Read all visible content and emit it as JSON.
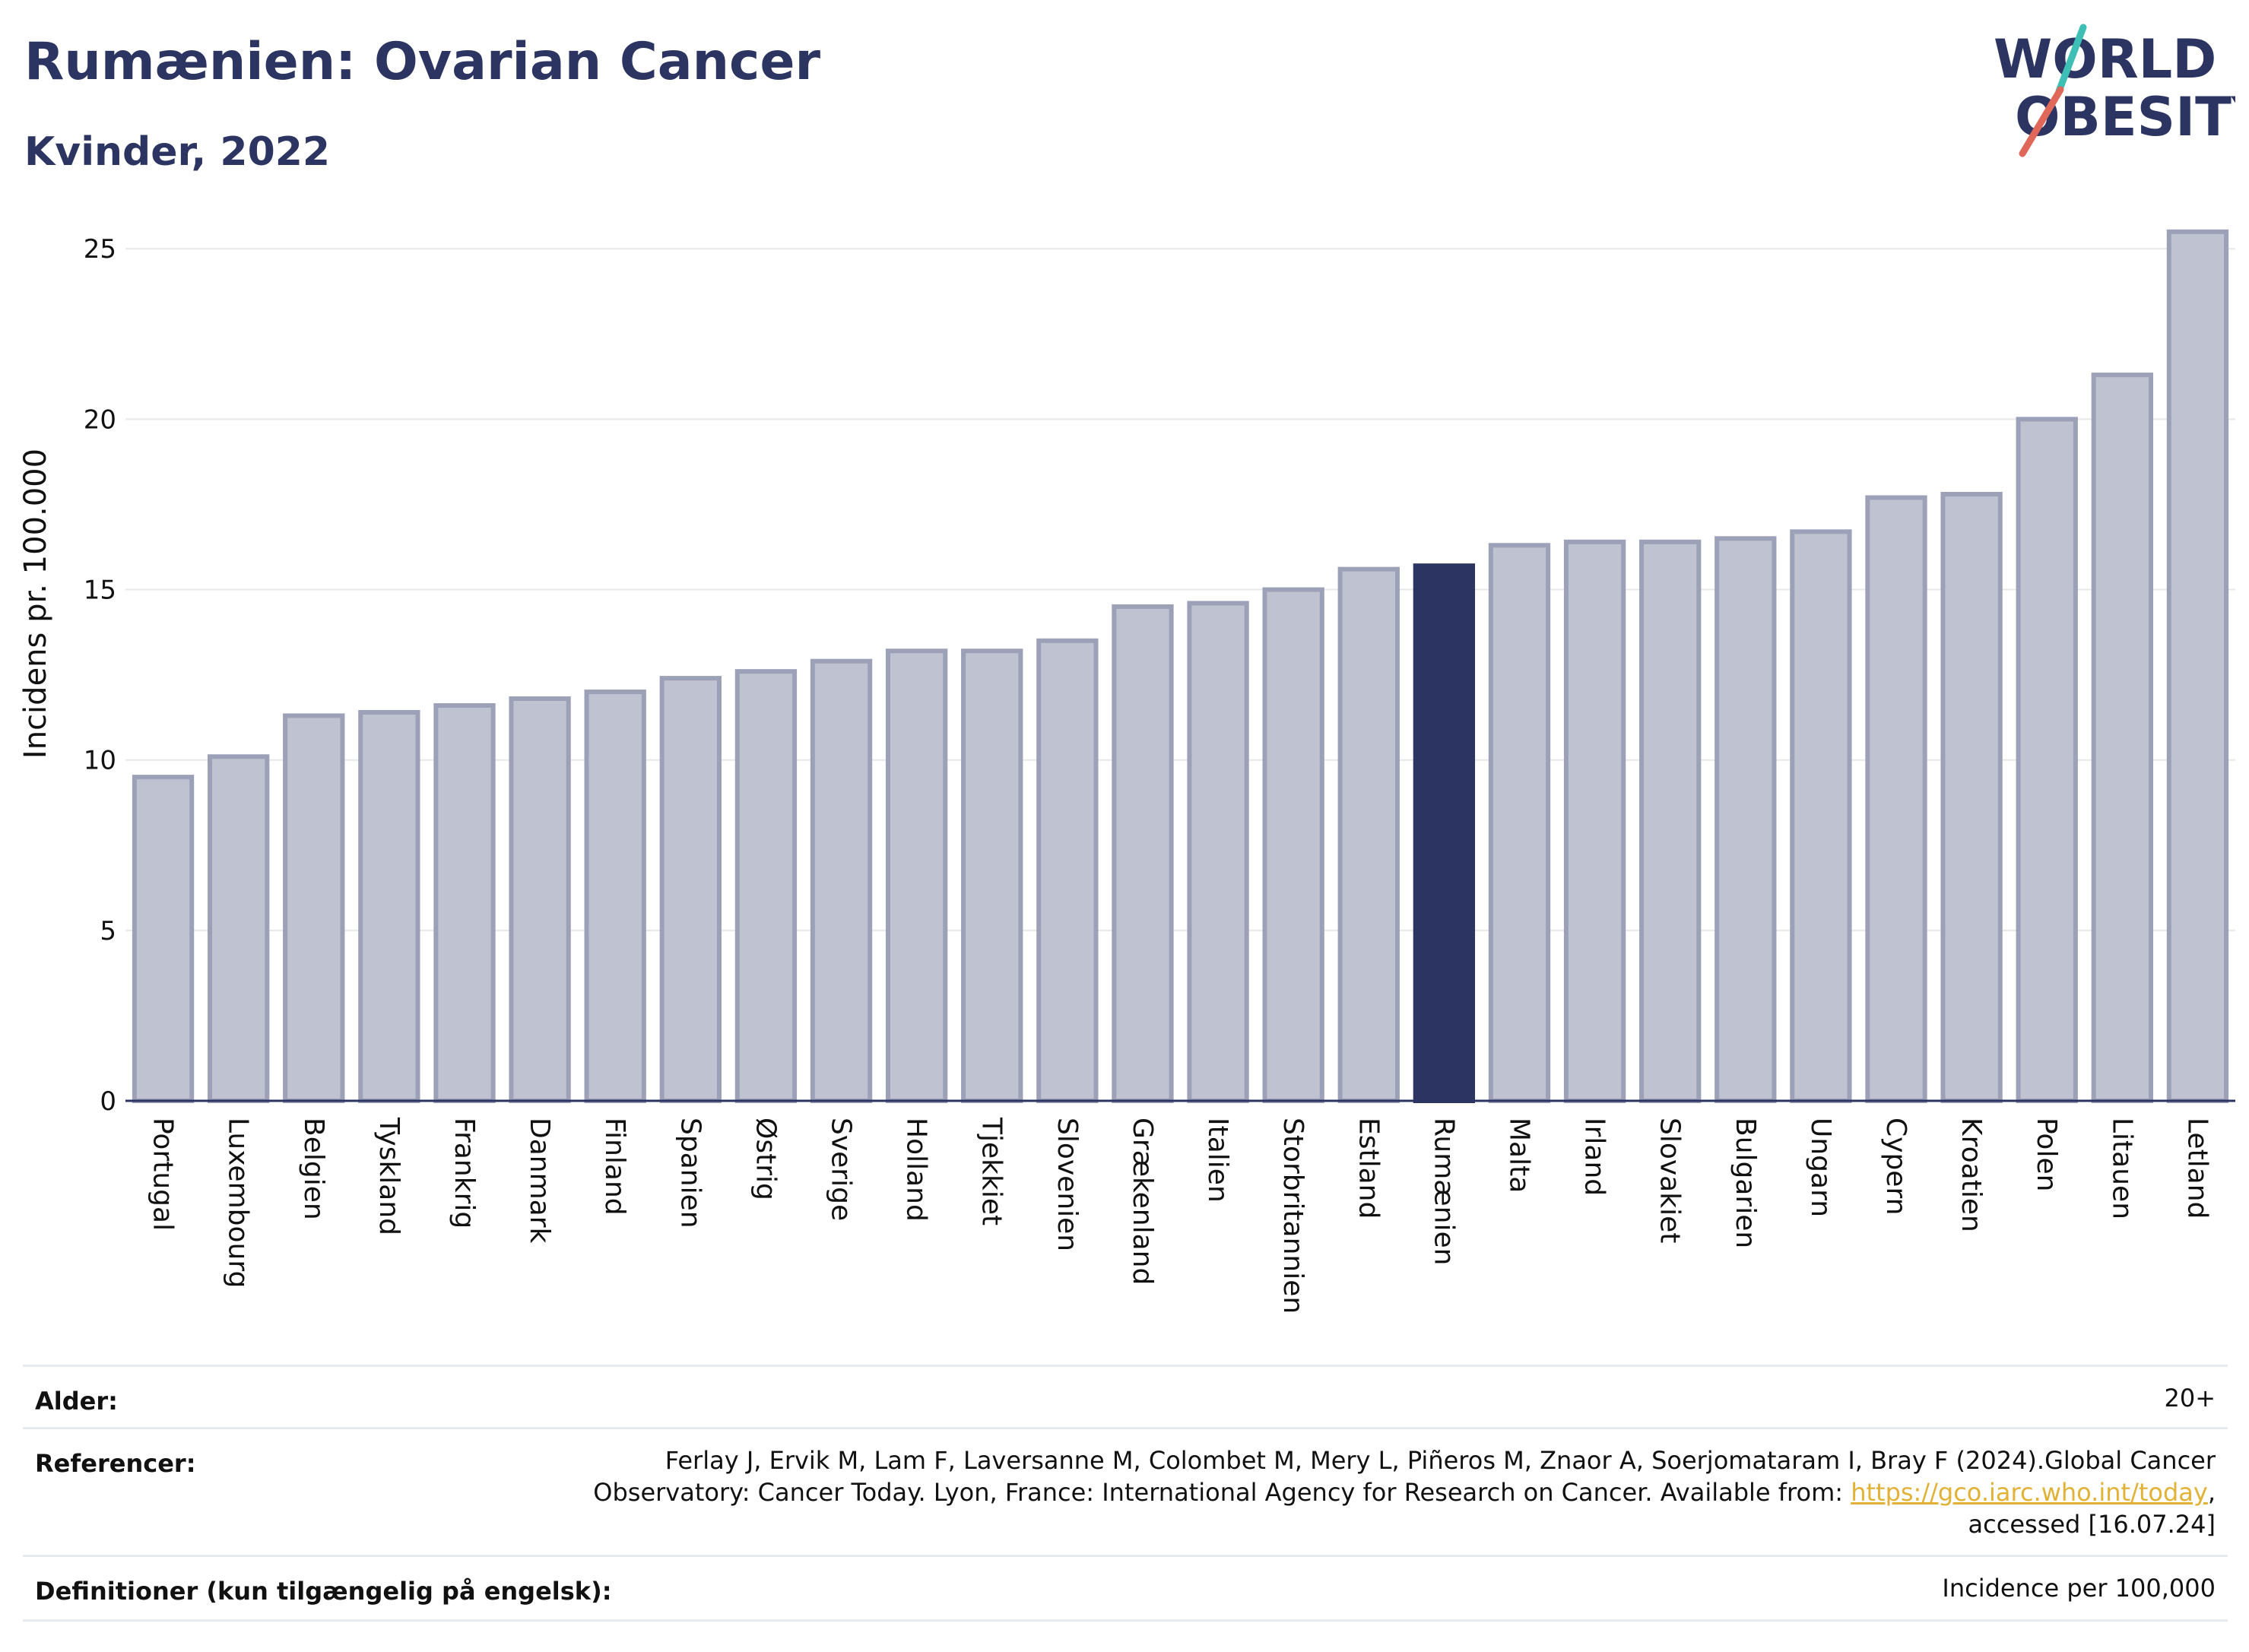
{
  "header": {
    "title": "Rumænien: Ovarian Cancer",
    "subtitle": "Kvinder, 2022",
    "logo_line1": "WORLD",
    "logo_line2": "OBESITY"
  },
  "colors": {
    "bar_default": "#bfc2d0",
    "bar_default_stroke": "#9ca1b8",
    "bar_highlight": "#2c3562",
    "grid": "#e6e8ec",
    "logo_text": "#2c3562",
    "logo_teal": "#3dbfb5",
    "logo_red": "#e0685a",
    "link": "#e2b236"
  },
  "chart_data": {
    "type": "bar",
    "ylabel": "Incidens pr. 100.000",
    "ylim": [
      0,
      26.5
    ],
    "yticks": [
      0,
      5,
      10,
      15,
      20,
      25
    ],
    "grid": true,
    "highlight": "Rumænien",
    "categories": [
      "Portugal",
      "Luxembourg",
      "Belgien",
      "Tyskland",
      "Frankrig",
      "Danmark",
      "Finland",
      "Spanien",
      "Østrig",
      "Sverige",
      "Holland",
      "Tjekkiet",
      "Slovenien",
      "Grækenland",
      "Italien",
      "Storbritannien",
      "Estland",
      "Rumænien",
      "Malta",
      "Irland",
      "Slovakiet",
      "Bulgarien",
      "Ungarn",
      "Cypern",
      "Kroatien",
      "Polen",
      "Litauen",
      "Letland"
    ],
    "values": [
      9.5,
      10.1,
      11.3,
      11.4,
      11.6,
      11.8,
      12.0,
      12.4,
      12.6,
      12.9,
      13.2,
      13.2,
      13.5,
      14.5,
      14.6,
      15.0,
      15.6,
      15.7,
      16.3,
      16.4,
      16.4,
      16.5,
      16.7,
      17.7,
      17.8,
      20.0,
      21.3,
      25.5
    ]
  },
  "info": {
    "age_label": "Alder:",
    "age_value": "20+",
    "ref_label": "Referencer:",
    "ref_text_1": "Ferlay J, Ervik M, Lam F, Laversanne M, Colombet M, Mery L, Piñeros M, Znaor A, Soerjomataram I, Bray F (2024).Global Cancer",
    "ref_text_2": "Observatory: Cancer Today. Lyon, France: International Agency for Research on Cancer. Available from: ",
    "ref_link": "https://gco.iarc.who.int/today",
    "ref_text_3": ",",
    "ref_text_4": "accessed [16.07.24]",
    "def_label": "Definitioner (kun tilgængelig på engelsk):",
    "def_value": "Incidence per 100,000"
  }
}
